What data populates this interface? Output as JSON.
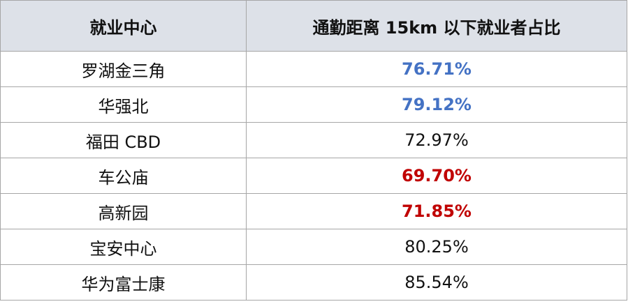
{
  "table": {
    "header": [
      "就业中心",
      "通勤距离 15km 以下就业者占比"
    ],
    "rows": [
      {
        "name": "罗湖金三角",
        "share": "76.71%",
        "color": "#4472c4"
      },
      {
        "name": "华强北",
        "share": "79.12%",
        "color": "#4472c4"
      },
      {
        "name": "福田 CBD",
        "share": "72.97%"
      },
      {
        "name": "车公庙",
        "share": "69.70%",
        "color": "#c00000"
      },
      {
        "name": "高新园",
        "share": "71.85%",
        "color": "#c00000"
      },
      {
        "name": "宝安中心",
        "share": "80.25%"
      },
      {
        "name": "华为富士康",
        "share": "85.54%"
      }
    ]
  }
}
